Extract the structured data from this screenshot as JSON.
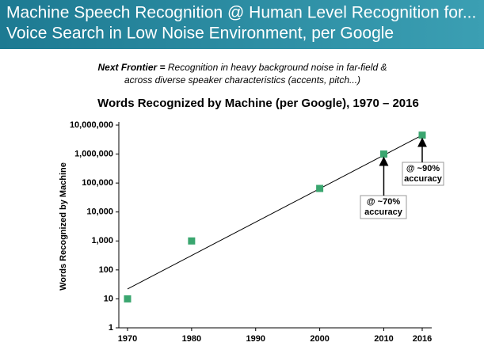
{
  "header": {
    "title_lines": [
      "Machine Speech Recognition @ Human Level Recognition for...",
      "Voice Search in Low Noise Environment, per Google"
    ]
  },
  "note": {
    "lead": "Next Frontier =",
    "lines": [
      "Recognition in heavy background noise in far-field &",
      "across diverse speaker characteristics (accents, pitch...)"
    ]
  },
  "chart_data": {
    "type": "scatter",
    "title": "Words Recognized by Machine (per Google), 1970 – 2016",
    "y_label": "Words Recognized by Machine",
    "x": [
      1970,
      1980,
      2000,
      2010,
      2016
    ],
    "values": [
      10,
      1000,
      65000,
      1000000,
      4500000
    ],
    "color": "#3aa66f",
    "log_y": true,
    "xlim": [
      1970,
      2016
    ],
    "xticks": [
      1970,
      1980,
      1990,
      2000,
      2010,
      2016
    ],
    "ylim": [
      1,
      10000000
    ],
    "yticks": [
      1,
      10,
      100,
      {
        "value": 1000,
        "label": "1,000"
      },
      {
        "value": 10000,
        "label": "10,000"
      },
      {
        "value": 100000,
        "label": "100,000"
      },
      {
        "value": 1000000,
        "label": "1,000,000"
      },
      {
        "value": 10000000,
        "label": "10,000,000"
      }
    ],
    "trendline": {
      "x": [
        1970,
        2016
      ],
      "values": [
        22,
        4500000
      ]
    },
    "annotations": [
      {
        "lines": [
          "@ ~70%",
          "accuracy"
        ]
      },
      {
        "lines": [
          "@ ~90%",
          "accuracy"
        ]
      }
    ]
  }
}
